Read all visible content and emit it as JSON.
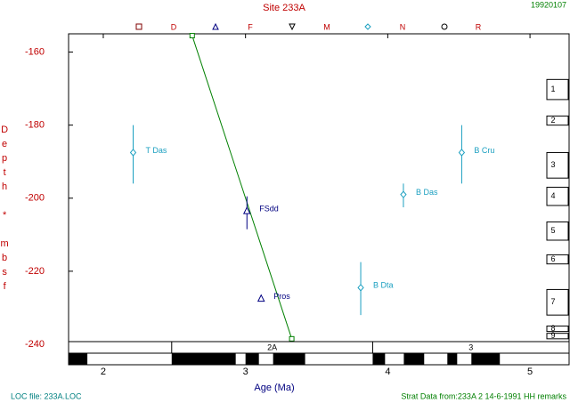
{
  "chart_data": {
    "type": "stratigraphic",
    "title": "Site 233A",
    "date": "19920107",
    "xlabel": "Age (Ma)",
    "ylabel": "Depth * mbsf",
    "footer_left": "LOC file: 233A.LOC",
    "footer_right": "Strat Data from:233A 2 14-6-1991 HH remarks",
    "marker_key": [
      "D",
      "F",
      "M",
      "N",
      "R"
    ],
    "xlim": [
      1.756,
      5.275
    ],
    "ylim": [
      -155,
      -240
    ],
    "xticks": [
      2,
      3,
      4,
      5
    ],
    "yticks": [
      -160,
      -180,
      -200,
      -220,
      -240
    ],
    "line": {
      "color": "#008000",
      "ages": [
        2.625,
        3.325
      ],
      "depths": [
        -155.5,
        -238.5
      ]
    },
    "events": [
      {
        "label": "T Das",
        "marker": "diamond",
        "color": "#1a9fc0",
        "age": 2.21,
        "depth": -187.5,
        "depth_top": -180,
        "depth_bottom": -196
      },
      {
        "label": "FSdd",
        "marker": "triangle",
        "color": "#000080",
        "age": 3.01,
        "depth": -203.5,
        "depth_top": -199.5,
        "depth_bottom": -208.5
      },
      {
        "label": "Pros",
        "marker": "triangle",
        "color": "#000080",
        "age": 3.11,
        "depth": -227.5,
        "depth_top": null,
        "depth_bottom": null
      },
      {
        "label": "B Dta",
        "marker": "diamond",
        "color": "#1a9fc0",
        "age": 3.81,
        "depth": -224.5,
        "depth_top": -217.5,
        "depth_bottom": -232
      },
      {
        "label": "B Das",
        "marker": "diamond",
        "color": "#1a9fc0",
        "age": 4.11,
        "depth": -199,
        "depth_top": -196,
        "depth_bottom": -202.5
      },
      {
        "label": "B Cru",
        "marker": "diamond",
        "color": "#1a9fc0",
        "age": 4.52,
        "depth": -187.5,
        "depth_top": -180,
        "depth_bottom": -196
      }
    ],
    "cores": [
      {
        "name": "1",
        "top": -167.5,
        "bottom": -173
      },
      {
        "name": "2",
        "top": -177.5,
        "bottom": -180
      },
      {
        "name": "3",
        "top": -187.5,
        "bottom": -194.5
      },
      {
        "name": "4",
        "top": -197,
        "bottom": -202
      },
      {
        "name": "5",
        "top": -206.5,
        "bottom": -211.5
      },
      {
        "name": "6",
        "top": -215.5,
        "bottom": -218
      },
      {
        "name": "7",
        "top": -225,
        "bottom": -232
      },
      {
        "name": "8",
        "top": -235,
        "bottom": -236.5
      },
      {
        "name": "9",
        "top": -237,
        "bottom": -238.5
      }
    ],
    "chrons": [
      {
        "name": null,
        "start": 1.756,
        "end": 2.481
      },
      {
        "name": "2A",
        "start": 2.481,
        "end": 3.894
      },
      {
        "name": "3",
        "start": 3.894,
        "end": 5.275
      }
    ],
    "polarity_normal": [
      [
        1.756,
        1.888
      ],
      [
        2.481,
        2.931
      ],
      [
        3.0,
        3.094
      ],
      [
        3.194,
        3.419
      ],
      [
        3.894,
        3.981
      ],
      [
        4.113,
        4.256
      ],
      [
        4.419,
        4.488
      ],
      [
        4.588,
        4.788
      ]
    ]
  }
}
